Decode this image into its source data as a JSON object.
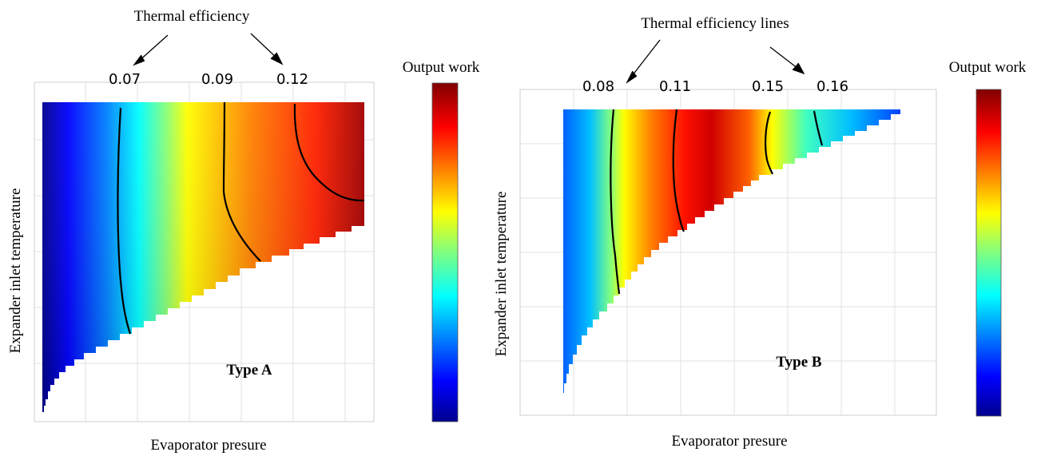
{
  "chart_data": [
    {
      "type": "heatmap",
      "title": "Type A",
      "xlabel": "Evaporator presure",
      "ylabel": "Expander inlet temperature",
      "colorbar_label": "Output work",
      "colormap": "jet",
      "annotation": "Thermal efficiency",
      "efficiency_lines": [
        "0.07",
        "0.09",
        "0.12"
      ],
      "grid": true
    },
    {
      "type": "heatmap",
      "title": "Type B",
      "xlabel": "Evaporator presure",
      "ylabel": "Expander inlet temperature",
      "colorbar_label": "Output work",
      "colormap": "jet",
      "annotation": "Thermal efficiency lines",
      "efficiency_lines": [
        "0.08",
        "0.11",
        "0.15",
        "0.16"
      ],
      "grid": true
    }
  ],
  "colors": {
    "jet": [
      "#00008f",
      "#0000ff",
      "#0080ff",
      "#00ffff",
      "#80ff80",
      "#ffff00",
      "#ff8000",
      "#ff0000",
      "#800000"
    ],
    "line": "#000000"
  }
}
